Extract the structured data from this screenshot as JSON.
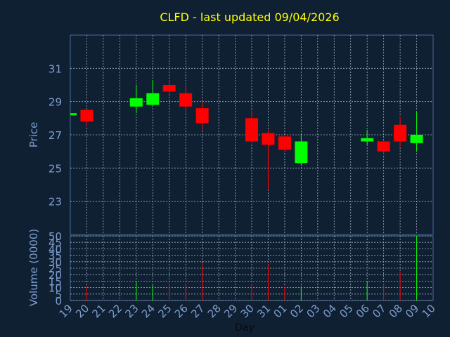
{
  "chart_data": [
    {
      "type": "candlestick",
      "title": "CLFD - last updated 09/04/2026",
      "ylabel": "Price",
      "xlabel": "",
      "ylim": [
        21.0,
        33.0
      ],
      "yticks": [
        "23",
        "25",
        "27",
        "29",
        "31"
      ],
      "candles": [
        {
          "day": "19",
          "open": 28.3,
          "high": 28.3,
          "low": 28.3,
          "close": 28.3
        },
        {
          "day": "20",
          "open": 28.5,
          "high": 28.5,
          "low": 27.5,
          "close": 27.8
        },
        {
          "day": "23",
          "open": 28.7,
          "high": 30.0,
          "low": 28.3,
          "close": 29.2
        },
        {
          "day": "24",
          "open": 28.8,
          "high": 30.3,
          "low": 28.7,
          "close": 29.5
        },
        {
          "day": "25",
          "open": 30.0,
          "high": 30.3,
          "low": 29.5,
          "close": 29.6
        },
        {
          "day": "26",
          "open": 29.5,
          "high": 30.0,
          "low": 28.3,
          "close": 28.7
        },
        {
          "day": "27",
          "open": 28.6,
          "high": 29.0,
          "low": 27.3,
          "close": 27.7
        },
        {
          "day": "30",
          "open": 28.0,
          "high": 28.5,
          "low": 26.5,
          "close": 26.6
        },
        {
          "day": "31",
          "open": 27.1,
          "high": 27.3,
          "low": 23.7,
          "close": 26.4
        },
        {
          "day": "01",
          "open": 26.9,
          "high": 27.0,
          "low": 26.0,
          "close": 26.1
        },
        {
          "day": "02",
          "open": 25.3,
          "high": 27.1,
          "low": 25.2,
          "close": 26.6
        },
        {
          "day": "06",
          "open": 26.6,
          "high": 27.3,
          "low": 26.4,
          "close": 26.8
        },
        {
          "day": "07",
          "open": 26.6,
          "high": 26.7,
          "low": 25.8,
          "close": 26.0
        },
        {
          "day": "08",
          "open": 27.6,
          "high": 28.1,
          "low": 26.3,
          "close": 26.6
        },
        {
          "day": "09",
          "open": 26.5,
          "high": 28.4,
          "low": 26.0,
          "close": 27.0
        }
      ]
    },
    {
      "type": "bar",
      "title": "",
      "ylabel": "Volume (0000)",
      "xlabel": "Day",
      "ylim": [
        0,
        50
      ],
      "yticks": [
        "0",
        "5",
        "10",
        "15",
        "20",
        "25",
        "30",
        "35",
        "40",
        "45",
        "50"
      ],
      "categories": [
        "19",
        "20",
        "21",
        "22",
        "23",
        "24",
        "25",
        "26",
        "27",
        "28",
        "29",
        "30",
        "31",
        "01",
        "02",
        "03",
        "04",
        "05",
        "06",
        "07",
        "08",
        "09",
        "10"
      ],
      "bars": [
        {
          "day": "20",
          "value": 12,
          "direction": "down"
        },
        {
          "day": "23",
          "value": 15,
          "direction": "up"
        },
        {
          "day": "24",
          "value": 12,
          "direction": "up"
        },
        {
          "day": "25",
          "value": 13,
          "direction": "down"
        },
        {
          "day": "26",
          "value": 13,
          "direction": "down"
        },
        {
          "day": "27",
          "value": 29,
          "direction": "down"
        },
        {
          "day": "30",
          "value": 13,
          "direction": "down"
        },
        {
          "day": "31",
          "value": 28,
          "direction": "down"
        },
        {
          "day": "01",
          "value": 11,
          "direction": "down"
        },
        {
          "day": "02",
          "value": 11,
          "direction": "up"
        },
        {
          "day": "06",
          "value": 15,
          "direction": "up"
        },
        {
          "day": "07",
          "value": 13,
          "direction": "down"
        },
        {
          "day": "08",
          "value": 22,
          "direction": "down"
        },
        {
          "day": "09",
          "value": 50,
          "direction": "up"
        }
      ]
    }
  ],
  "colors": {
    "background": "#0f2033",
    "title": "#ffff00",
    "axis_text": "#7f9fcf",
    "grid": "#a0b0c0",
    "frame": "#4a6a90",
    "up": "#00ff00",
    "down": "#ff0000"
  }
}
